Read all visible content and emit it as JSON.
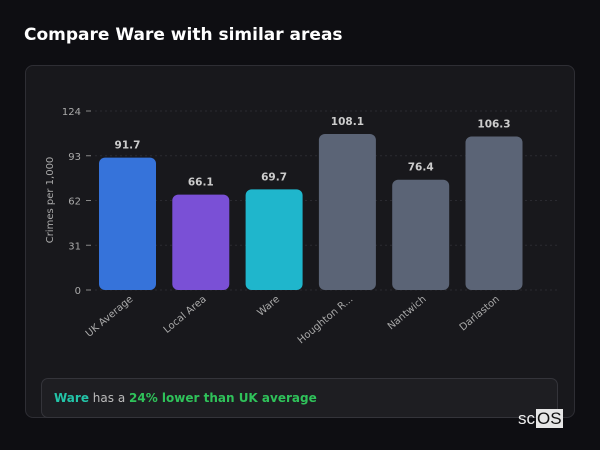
{
  "title": "Compare Ware with similar areas",
  "chart_data": {
    "type": "bar",
    "title": "",
    "xlabel": "",
    "ylabel": "Crimes per 1,000",
    "ylim": [
      0,
      124
    ],
    "yticks": [
      0,
      31,
      62,
      93,
      124
    ],
    "categories": [
      "UK Average",
      "Local Area",
      "Ware",
      "Houghton R...",
      "Nantwich",
      "Darlaston"
    ],
    "values": [
      91.7,
      66.1,
      69.7,
      108.1,
      76.4,
      106.3
    ],
    "labels": [
      "91.7",
      "66.1",
      "69.7",
      "108.1",
      "76.4",
      "106.3"
    ],
    "colors": [
      "#3673da",
      "#7a50d6",
      "#1fb6cc",
      "#5b6476",
      "#5b6476",
      "#5b6476"
    ]
  },
  "summary": {
    "area": "Ware",
    "middle": "has a",
    "highlight": "24% lower than UK average",
    "area_color": "#23c4a8",
    "highlight_color": "#2fc25a"
  },
  "logo": {
    "prefix": "sc",
    "box": "OS"
  }
}
